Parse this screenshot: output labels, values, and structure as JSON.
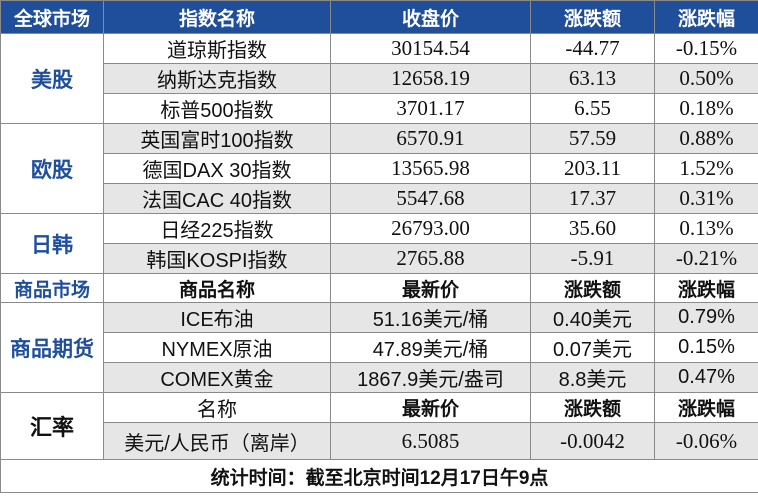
{
  "headers": [
    "全球市场",
    "指数名称",
    "收盘价",
    "涨跌额",
    "涨跌幅"
  ],
  "groups": [
    {
      "name": "美股",
      "rows": [
        {
          "name": "道琼斯指数",
          "close": "30154.54",
          "change": "-44.77",
          "pct": "-0.15%"
        },
        {
          "name": "纳斯达克指数",
          "close": "12658.19",
          "change": "63.13",
          "pct": "0.50%"
        },
        {
          "name": "标普500指数",
          "close": "3701.17",
          "change": "6.55",
          "pct": "0.18%"
        }
      ]
    },
    {
      "name": "欧股",
      "rows": [
        {
          "name": "英国富时100指数",
          "close": "6570.91",
          "change": "57.59",
          "pct": "0.88%"
        },
        {
          "name": "德国DAX 30指数",
          "close": "13565.98",
          "change": "203.11",
          "pct": "1.52%"
        },
        {
          "name": "法国CAC 40指数",
          "close": "5547.68",
          "change": "17.37",
          "pct": "0.31%"
        }
      ]
    },
    {
      "name": "日韩",
      "rows": [
        {
          "name": "日经225指数",
          "close": "26793.00",
          "change": "35.60",
          "pct": "0.13%"
        },
        {
          "name": "韩国KOSPI指数",
          "close": "2765.88",
          "change": "-5.91",
          "pct": "-0.21%"
        }
      ]
    }
  ],
  "commodity_headers": [
    "商品市场",
    "商品名称",
    "最新价",
    "涨跌额",
    "涨跌幅"
  ],
  "commodity_group": "商品期货",
  "commodities": [
    {
      "name": "ICE布油",
      "price": "51.16美元/桶",
      "change": "0.40美元",
      "pct": "0.79%"
    },
    {
      "name": "NYMEX原油",
      "price": "47.89美元/桶",
      "change": "0.07美元",
      "pct": "0.15%"
    },
    {
      "name": "COMEX黄金",
      "price": "1867.9美元/盎司",
      "change": "8.8美元",
      "pct": "0.47%"
    }
  ],
  "fx_group": "汇率",
  "fx_headers": [
    "名称",
    "最新价",
    "涨跌额",
    "涨跌幅"
  ],
  "fx": {
    "name": "美元/人民币（离岸）",
    "price": "6.5085",
    "change": "-0.0042",
    "pct": "-0.06%"
  },
  "footer": "统计时间：截至北京时间12月17日午9点"
}
